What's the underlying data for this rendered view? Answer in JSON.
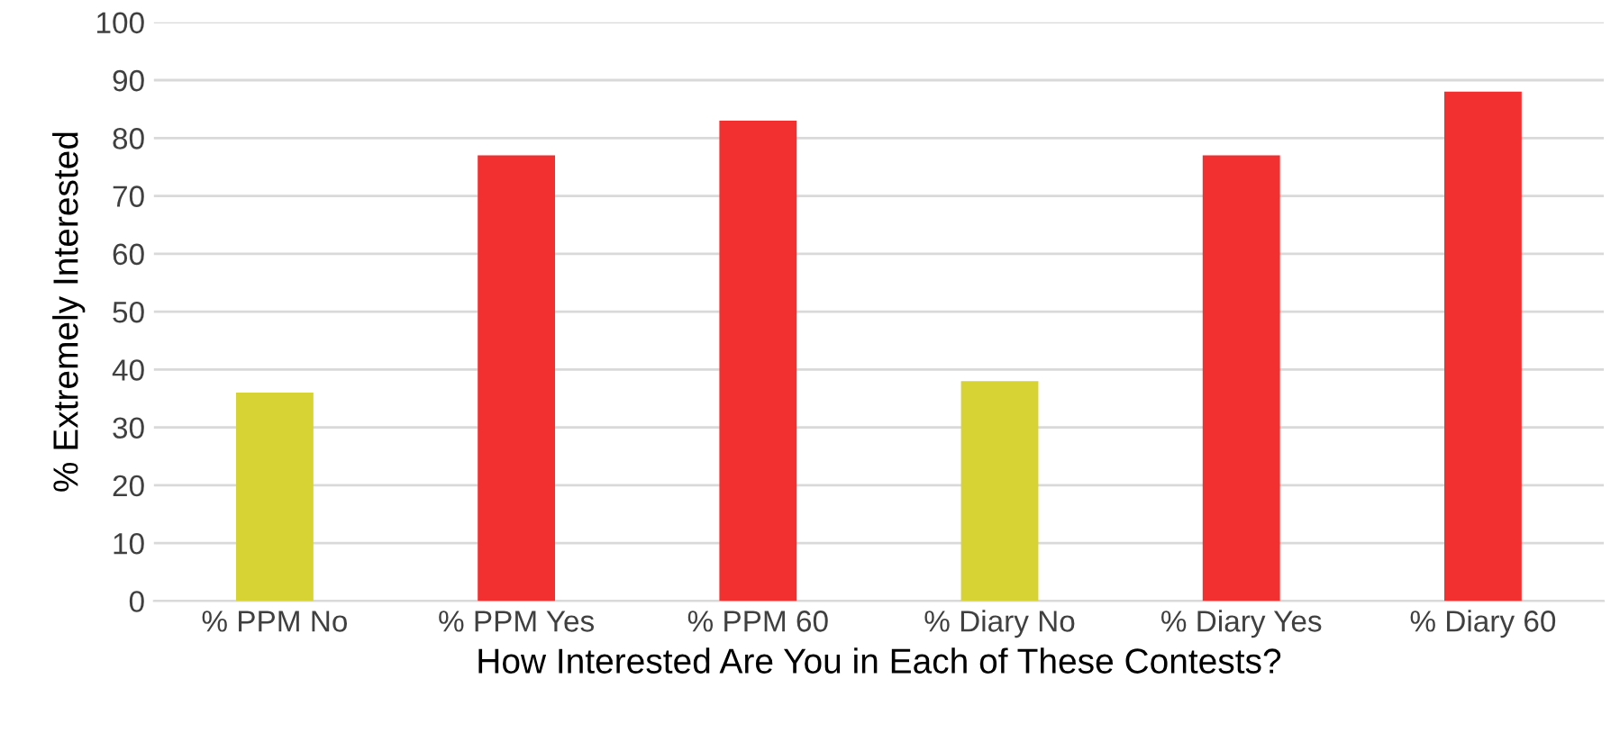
{
  "chart_data": {
    "type": "bar",
    "xlabel": "How Interested Are You in Each of These Contests?",
    "ylabel": "% Extremely Interested",
    "categories": [
      "% PPM No",
      "% PPM Yes",
      "% PPM 60",
      "% Diary No",
      "% Diary Yes",
      "% Diary 60"
    ],
    "values": [
      36,
      77,
      83,
      38,
      77,
      88
    ],
    "colors": [
      "#d7d335",
      "#f23030",
      "#f23030",
      "#d7d335",
      "#f23030",
      "#f23030"
    ],
    "ylim": [
      0,
      100
    ],
    "yticks": [
      0,
      10,
      20,
      30,
      40,
      50,
      60,
      70,
      80,
      90,
      100
    ],
    "grid": "y"
  }
}
